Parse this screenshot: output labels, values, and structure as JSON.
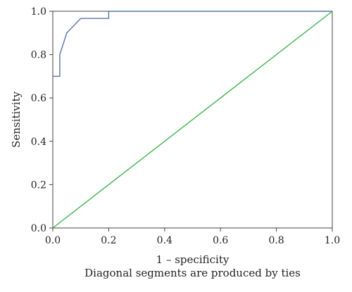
{
  "chart_data": {
    "type": "line",
    "xlabel": "1 – specificity",
    "ylabel": "Sensitivity",
    "note": "Diagonal segments are produced by ties",
    "xlim": [
      0,
      1
    ],
    "ylim": [
      0,
      1
    ],
    "x_ticks": [
      "0.0",
      "0.2",
      "0.4",
      "0.6",
      "0.8",
      "1.0"
    ],
    "y_ticks": [
      "0.0",
      "0.2",
      "0.4",
      "0.6",
      "0.8",
      "1.0"
    ],
    "grid": false,
    "series": [
      {
        "color": "#5b73a8",
        "points": [
          [
            0.0,
            0.7
          ],
          [
            0.025,
            0.7
          ],
          [
            0.025,
            0.8
          ],
          [
            0.05,
            0.9
          ],
          [
            0.1,
            0.967
          ],
          [
            0.2,
            0.967
          ],
          [
            0.2,
            1.0
          ],
          [
            1.0,
            1.0
          ]
        ]
      },
      {
        "color": "#3cb44b",
        "points": [
          [
            0.0,
            0.0
          ],
          [
            1.0,
            1.0
          ]
        ]
      }
    ]
  }
}
